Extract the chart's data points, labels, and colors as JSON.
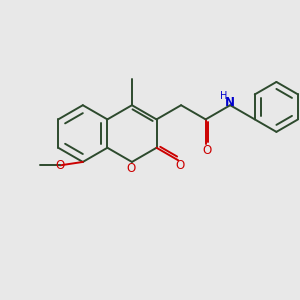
{
  "bg_color": "#e8e8e8",
  "bond_color": "#2d4a2d",
  "oxygen_color": "#cc0000",
  "nitrogen_color": "#0000cc",
  "lw": 1.4,
  "figsize": [
    3.0,
    3.0
  ],
  "dpi": 100,
  "xlim": [
    0,
    10
  ],
  "ylim": [
    0,
    10
  ],
  "bl": 0.95
}
